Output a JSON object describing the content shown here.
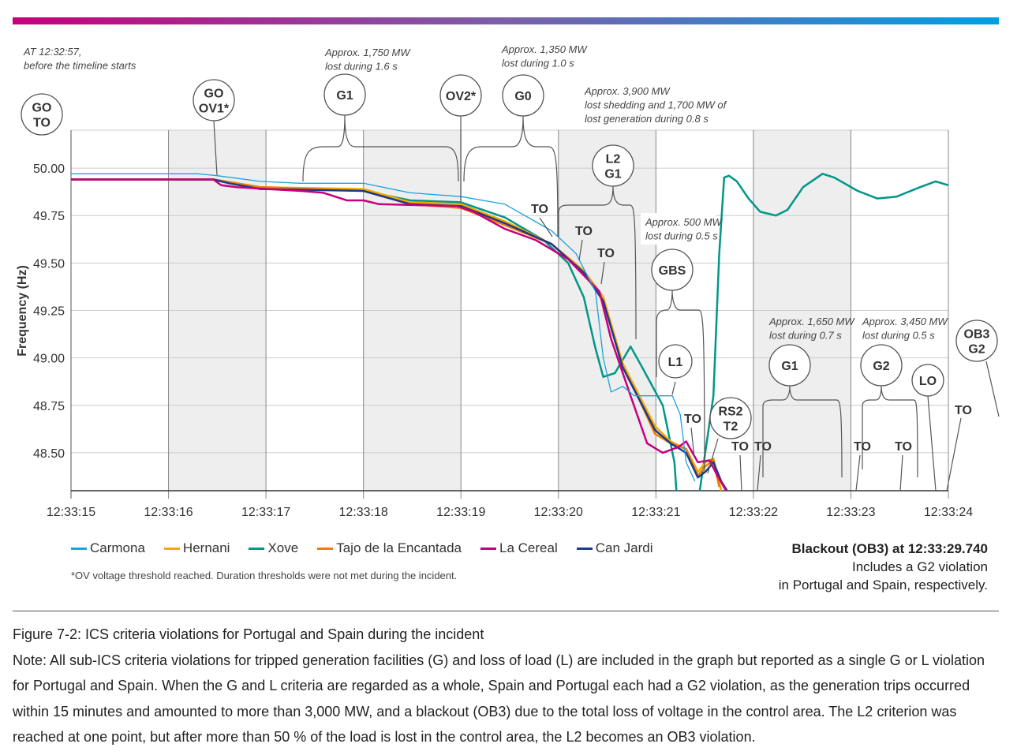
{
  "chart_data": {
    "type": "line",
    "ylabel": "Frequency (Hz)",
    "x_unit": "seconds after 12:33:15",
    "xlim": [
      0,
      9
    ],
    "ylim": [
      48.3,
      50.2
    ],
    "xticks": [
      "12:33:15",
      "12:33:16",
      "12:33:17",
      "12:33:18",
      "12:33:19",
      "12:33:20",
      "12:33:21",
      "12:33:22",
      "12:33:23",
      "12:33:24"
    ],
    "yticks": [
      "50.00",
      "49.75",
      "49.50",
      "49.25",
      "49.00",
      "48.75",
      "48.50"
    ],
    "ytick_values": [
      50,
      49.75,
      49.5,
      49.25,
      49,
      48.75,
      48.5
    ],
    "series": [
      {
        "name": "Carmona",
        "color": "#1ba1e2",
        "x": [
          0,
          1.3,
          1.5,
          1.94,
          2.35,
          3,
          3.48,
          4,
          4.45,
          4.93,
          5.18,
          5.38,
          5.46,
          5.54,
          5.66,
          5.78,
          5.99,
          6.17,
          6.25,
          6.31,
          6.4
        ],
        "y": [
          49.97,
          49.97,
          49.96,
          49.93,
          49.92,
          49.92,
          49.87,
          49.85,
          49.81,
          49.67,
          49.55,
          49.35,
          49.0,
          48.82,
          48.85,
          48.8,
          48.8,
          48.8,
          48.7,
          48.45,
          48.35
        ]
      },
      {
        "name": "Hernani",
        "color": "#f5a800",
        "x": [
          0,
          1.46,
          1.94,
          3,
          3.48,
          4,
          4.45,
          4.93,
          5.26,
          5.46,
          5.66,
          5.83,
          5.99,
          6.15,
          6.31,
          6.43,
          6.51,
          6.59,
          6.67
        ],
        "y": [
          49.94,
          49.94,
          49.9,
          49.89,
          49.82,
          49.81,
          49.72,
          49.6,
          49.46,
          49.32,
          48.97,
          48.8,
          48.64,
          48.56,
          48.52,
          48.4,
          48.45,
          48.47,
          48.3
        ]
      },
      {
        "name": "Xove",
        "color": "#009688",
        "x": [
          0,
          1.46,
          1.94,
          3,
          3.48,
          4,
          4.45,
          4.85,
          5.1,
          5.26,
          5.38,
          5.46,
          5.58,
          5.74,
          5.86,
          6.07,
          6.19,
          6.21
        ],
        "y": [
          49.94,
          49.94,
          49.9,
          49.88,
          49.83,
          49.82,
          49.74,
          49.62,
          49.5,
          49.32,
          49.05,
          48.9,
          48.92,
          49.06,
          48.95,
          48.75,
          48.45,
          48.3
        ]
      },
      {
        "name": "Xove (after)",
        "color": "#009688",
        "x": [
          6.45,
          6.59,
          6.65,
          6.7,
          6.75,
          6.83,
          6.95,
          7.07,
          7.23,
          7.35,
          7.51,
          7.71,
          7.83,
          8.07,
          8.27,
          8.47,
          8.71,
          8.87,
          9
        ],
        "y": [
          48.3,
          48.8,
          49.55,
          49.95,
          49.96,
          49.93,
          49.84,
          49.77,
          49.75,
          49.78,
          49.9,
          49.97,
          49.95,
          49.88,
          49.84,
          49.85,
          49.9,
          49.93,
          49.91
        ]
      },
      {
        "name": "Tajo de la Encantada",
        "color": "#f07d00",
        "x": [
          0,
          1.46,
          1.94,
          3,
          3.48,
          4,
          4.45,
          4.93,
          5.26,
          5.46,
          5.66,
          5.83,
          5.99,
          6.15,
          6.31,
          6.43,
          6.51,
          6.59,
          6.65
        ],
        "y": [
          49.94,
          49.94,
          49.9,
          49.88,
          49.81,
          49.79,
          49.7,
          49.6,
          49.45,
          49.3,
          48.95,
          48.78,
          48.6,
          48.55,
          48.52,
          48.38,
          48.43,
          48.46,
          48.32
        ]
      },
      {
        "name": "La Cereal",
        "color": "#c6007e",
        "x": [
          0,
          1.46,
          1.54,
          1.7,
          2.35,
          2.59,
          2.83,
          3,
          3.16,
          3.96,
          4.13,
          4.45,
          4.77,
          5.1,
          5.42,
          5.54,
          5.74,
          5.91,
          6.07,
          6.23,
          6.31,
          6.43,
          6.55,
          6.63,
          6.72
        ],
        "y": [
          49.94,
          49.94,
          49.91,
          49.9,
          49.88,
          49.87,
          49.83,
          49.83,
          49.81,
          49.8,
          49.77,
          49.68,
          49.62,
          49.52,
          49.35,
          49.1,
          48.8,
          48.55,
          48.5,
          48.53,
          48.56,
          48.45,
          48.46,
          48.38,
          48.3
        ]
      },
      {
        "name": "Can Jardi",
        "color": "#1d3a8a",
        "x": [
          0,
          1.46,
          1.62,
          1.94,
          3,
          3.48,
          4,
          4.45,
          4.93,
          5.26,
          5.46,
          5.66,
          5.83,
          5.99,
          6.15,
          6.31,
          6.43,
          6.51,
          6.59,
          6.67,
          6.73
        ],
        "y": [
          49.94,
          49.94,
          49.92,
          49.89,
          49.88,
          49.81,
          49.8,
          49.71,
          49.6,
          49.45,
          49.3,
          48.95,
          48.78,
          48.62,
          48.55,
          48.5,
          48.37,
          48.4,
          48.45,
          48.35,
          48.3
        ]
      }
    ],
    "legend": [
      "Carmona",
      "Hernani",
      "Xove",
      "Tajo de la Encantada",
      "La Cereal",
      "Can Jardi"
    ]
  },
  "annotations": {
    "notes": [
      [
        "AT 12:32:57,",
        "before the timeline starts"
      ],
      [
        "Approx. 1,750 MW",
        "lost during 1.6 s"
      ],
      [
        "Approx. 1,350 MW",
        "lost during 1.0 s"
      ],
      [
        "Approx. 3,900 MW",
        "lost shedding and 1,700 MW of",
        "lost generation during 0.8 s"
      ],
      [
        "Approx. 500 MW",
        "lost during 0.5 s"
      ],
      [
        "Approx. 1,650 MW",
        "lost during 0.7 s"
      ],
      [
        "Approx. 3,450 MW",
        "lost during 0.5 s"
      ]
    ],
    "circles": [
      [
        "GO",
        "TO"
      ],
      [
        "GO",
        "OV1*"
      ],
      [
        "G1"
      ],
      [
        "OV2*"
      ],
      [
        "G0"
      ],
      [
        "L2",
        "G1"
      ],
      [
        "GBS"
      ],
      [
        "L1"
      ],
      [
        "RS2",
        "T2"
      ],
      [
        "G1"
      ],
      [
        "G2"
      ],
      [
        "LO"
      ],
      [
        "OB3",
        "G2"
      ]
    ],
    "to_label": "TO"
  },
  "legend_footnote": "*OV voltage threshold reached. Duration thresholds were not met during the incident.",
  "blackout": {
    "line1": "Blackout (OB3) at 12:33:29.740",
    "line2": "Includes a G2 violation",
    "line3": "in Portugal and Spain, respectively."
  },
  "caption": {
    "title": "Figure 7-2: ICS criteria violations for Portugal and Spain during the incident",
    "note": "Note: All sub-ICS criteria violations for tripped generation facilities (G) and loss of load (L) are included in the graph but reported as a single G or L violation for Portugal and Spain. When the G and L criteria are regarded as a whole, Spain and Portugal each had a G2 violation, as the generation trips occurred within 15 minutes and amounted to more than 3,000 MW, and a blackout (OB3) due to the total loss of voltage in the control area. The L2 criterion was reached at one point, but after more than 50 % of the load is lost in the control area, the L2 becomes an OB3 violation."
  }
}
